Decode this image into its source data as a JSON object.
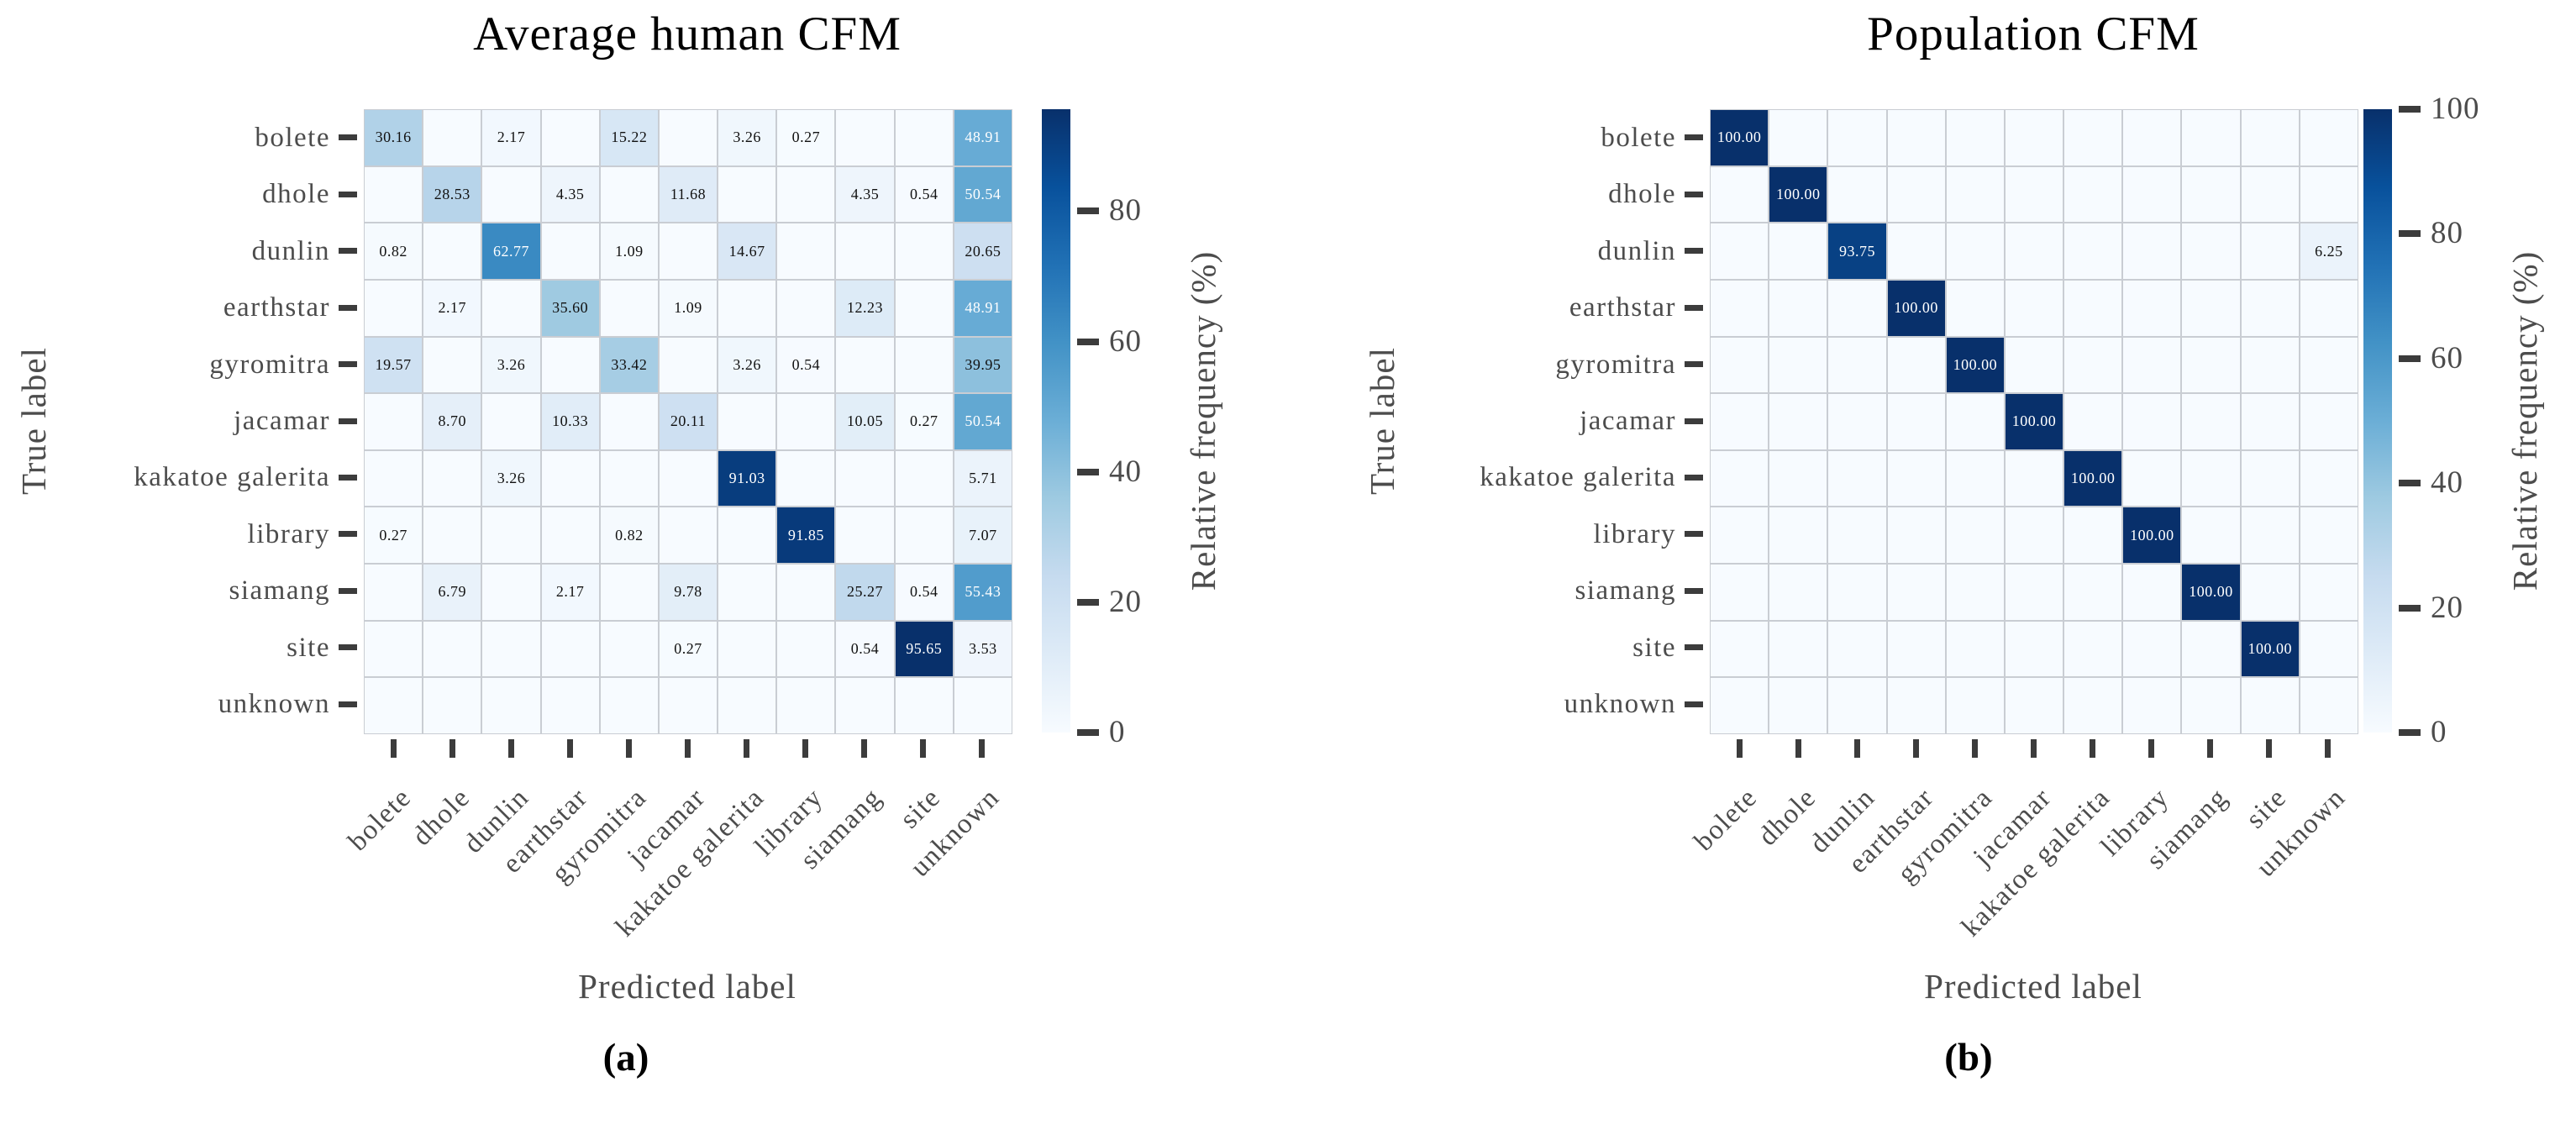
{
  "figure": {
    "background": "#ffffff",
    "description": "Two side-by-side confusion frequency matrices (CFM) with Blues colormap and colorbars"
  },
  "chart_data": [
    {
      "type": "heatmap",
      "title": "Average human CFM",
      "caption": "(a)",
      "xlabel": "Predicted label",
      "ylabel": "True label",
      "categories": [
        "bolete",
        "dhole",
        "dunlin",
        "earthstar",
        "gyromitra",
        "jacamar",
        "kakatoe galerita",
        "library",
        "siamang",
        "site",
        "unknown"
      ],
      "matrix": [
        [
          30.16,
          0,
          2.17,
          0,
          15.22,
          0,
          3.26,
          0.27,
          0,
          0,
          48.91
        ],
        [
          0,
          28.53,
          0,
          4.35,
          0,
          11.68,
          0,
          0,
          4.35,
          0.54,
          50.54
        ],
        [
          0.82,
          0,
          62.77,
          0,
          1.09,
          0,
          14.67,
          0,
          0,
          0,
          20.65
        ],
        [
          0,
          2.17,
          0,
          35.6,
          0,
          1.09,
          0,
          0,
          12.23,
          0,
          48.91
        ],
        [
          19.57,
          0,
          3.26,
          0,
          33.42,
          0,
          3.26,
          0.54,
          0,
          0,
          39.95
        ],
        [
          0,
          8.7,
          0,
          10.33,
          0,
          20.11,
          0,
          0,
          10.05,
          0.27,
          50.54
        ],
        [
          0,
          0,
          3.26,
          0,
          0,
          0,
          91.03,
          0,
          0,
          0,
          5.71
        ],
        [
          0.27,
          0,
          0,
          0,
          0.82,
          0,
          0,
          91.85,
          0,
          0,
          7.07
        ],
        [
          0,
          6.79,
          0,
          2.17,
          0,
          9.78,
          0,
          0,
          25.27,
          0.54,
          55.43
        ],
        [
          0,
          0,
          0,
          0,
          0,
          0.27,
          0,
          0,
          0.54,
          95.65,
          3.53
        ],
        [
          0,
          0,
          0,
          0,
          0,
          0,
          0,
          0,
          0,
          0,
          0
        ]
      ],
      "vmin": 0,
      "vmax": 95.65,
      "colormap": "Blues",
      "annotation_format": "two decimals, zero cells left blank",
      "colorbar": {
        "label": "Relative frequency (%)",
        "ticks": [
          0,
          20,
          40,
          60,
          80
        ]
      },
      "colors": {
        "cmap_low": "#f7fbff",
        "cmap_high": "#08306b",
        "grid": "#c9cdd3",
        "tick_text": "#4c4c4c",
        "title_text": "#000000"
      }
    },
    {
      "type": "heatmap",
      "title": "Population CFM",
      "caption": "(b)",
      "xlabel": "Predicted label",
      "ylabel": "True label",
      "categories": [
        "bolete",
        "dhole",
        "dunlin",
        "earthstar",
        "gyromitra",
        "jacamar",
        "kakatoe galerita",
        "library",
        "siamang",
        "site",
        "unknown"
      ],
      "matrix": [
        [
          100.0,
          0,
          0,
          0,
          0,
          0,
          0,
          0,
          0,
          0,
          0
        ],
        [
          0,
          100.0,
          0,
          0,
          0,
          0,
          0,
          0,
          0,
          0,
          0
        ],
        [
          0,
          0,
          93.75,
          0,
          0,
          0,
          0,
          0,
          0,
          0,
          6.25
        ],
        [
          0,
          0,
          0,
          100.0,
          0,
          0,
          0,
          0,
          0,
          0,
          0
        ],
        [
          0,
          0,
          0,
          0,
          100.0,
          0,
          0,
          0,
          0,
          0,
          0
        ],
        [
          0,
          0,
          0,
          0,
          0,
          100.0,
          0,
          0,
          0,
          0,
          0
        ],
        [
          0,
          0,
          0,
          0,
          0,
          0,
          100.0,
          0,
          0,
          0,
          0
        ],
        [
          0,
          0,
          0,
          0,
          0,
          0,
          0,
          100.0,
          0,
          0,
          0
        ],
        [
          0,
          0,
          0,
          0,
          0,
          0,
          0,
          0,
          100.0,
          0,
          0
        ],
        [
          0,
          0,
          0,
          0,
          0,
          0,
          0,
          0,
          0,
          100.0,
          0
        ],
        [
          0,
          0,
          0,
          0,
          0,
          0,
          0,
          0,
          0,
          0,
          0
        ]
      ],
      "vmin": 0,
      "vmax": 100,
      "colormap": "Blues",
      "annotation_format": "two decimals, zero cells left blank",
      "colorbar": {
        "label": "Relative frequency (%)",
        "ticks": [
          0,
          20,
          40,
          60,
          80,
          100
        ]
      },
      "colors": {
        "cmap_low": "#f7fbff",
        "cmap_high": "#08306b",
        "grid": "#c9cdd3",
        "tick_text": "#4c4c4c",
        "title_text": "#000000"
      }
    }
  ]
}
